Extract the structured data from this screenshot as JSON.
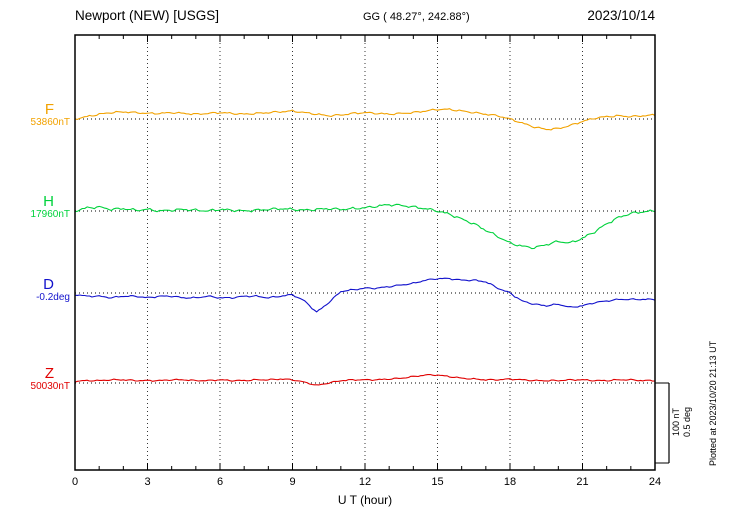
{
  "header": {
    "station": "Newport (NEW)  [USGS]",
    "coordinates": "GG ( 48.27°, 242.88°)",
    "date": "2023/10/14"
  },
  "plot": {
    "xlabel": "U T (hour)",
    "xticks": [
      "0",
      "3",
      "6",
      "9",
      "12",
      "15",
      "18",
      "21",
      "24"
    ],
    "grid_hours": [
      3,
      6,
      9,
      12,
      15,
      18,
      21
    ]
  },
  "scale_bar": {
    "nt_label": "100 nT",
    "deg_label": "0.5 deg"
  },
  "plotted_note": "Plotted at 2023/10/20 21:13 UT",
  "chart_data": {
    "type": "line",
    "title": "Newport (NEW) [USGS] magnetogram 2023/10/14",
    "xlabel": "U T (hour)",
    "x_range_hours": [
      0,
      24
    ],
    "x_step_hours": 0.5,
    "grid": "vertical-dotted",
    "scale_reference": {
      "nT_per_bar": 100,
      "deg_per_bar": 0.5
    },
    "series": [
      {
        "name": "F",
        "unit": "nT",
        "baseline": 53860,
        "baseline_label": "53860nT",
        "color": "#f2a200",
        "offsets": [
          0,
          3,
          6,
          8,
          9,
          8,
          7,
          7,
          8,
          7,
          6,
          7,
          8,
          7,
          6,
          7,
          8,
          9,
          10,
          8,
          6,
          4,
          5,
          7,
          8,
          7,
          6,
          7,
          8,
          10,
          12,
          12,
          10,
          8,
          6,
          4,
          0,
          -5,
          -10,
          -13,
          -12,
          -8,
          -3,
          1,
          3,
          4,
          3,
          4,
          5
        ]
      },
      {
        "name": "H",
        "unit": "nT",
        "baseline": 17960,
        "baseline_label": "17960nT",
        "color": "#00d23c",
        "offsets": [
          0,
          4,
          5,
          2,
          3,
          1,
          2,
          0,
          1,
          2,
          1,
          0,
          2,
          1,
          0,
          1,
          2,
          3,
          2,
          1,
          2,
          3,
          2,
          3,
          4,
          6,
          8,
          7,
          5,
          3,
          0,
          -4,
          -10,
          -16,
          -24,
          -32,
          -40,
          -44,
          -46,
          -42,
          -38,
          -40,
          -34,
          -26,
          -16,
          -8,
          -3,
          -1,
          0
        ]
      },
      {
        "name": "D",
        "unit": "deg",
        "baseline": -0.2,
        "baseline_label": "-0.2deg",
        "color": "#1212cc",
        "offsets": [
          -0.01,
          -0.02,
          -0.02,
          -0.03,
          -0.02,
          -0.02,
          -0.03,
          -0.02,
          -0.02,
          -0.03,
          -0.03,
          -0.02,
          -0.03,
          -0.03,
          -0.02,
          -0.02,
          -0.03,
          -0.02,
          -0.01,
          -0.05,
          -0.12,
          -0.06,
          0.01,
          0.02,
          0.03,
          0.03,
          0.04,
          0.05,
          0.06,
          0.08,
          0.09,
          0.09,
          0.08,
          0.08,
          0.07,
          0.03,
          0.0,
          -0.05,
          -0.07,
          -0.08,
          -0.07,
          -0.09,
          -0.08,
          -0.06,
          -0.05,
          -0.04,
          -0.04,
          -0.04,
          -0.04
        ]
      },
      {
        "name": "Z",
        "unit": "nT",
        "baseline": 50030,
        "baseline_label": "50030nT",
        "color": "#e00000",
        "offsets": [
          2,
          3,
          3,
          4,
          4,
          3,
          3,
          3,
          4,
          4,
          3,
          3,
          4,
          3,
          3,
          4,
          4,
          5,
          4,
          1,
          -3,
          0,
          3,
          4,
          4,
          4,
          5,
          6,
          8,
          10,
          10,
          8,
          6,
          5,
          4,
          4,
          5,
          4,
          3,
          3,
          3,
          4,
          4,
          3,
          3,
          4,
          4,
          3,
          3
        ]
      }
    ]
  }
}
